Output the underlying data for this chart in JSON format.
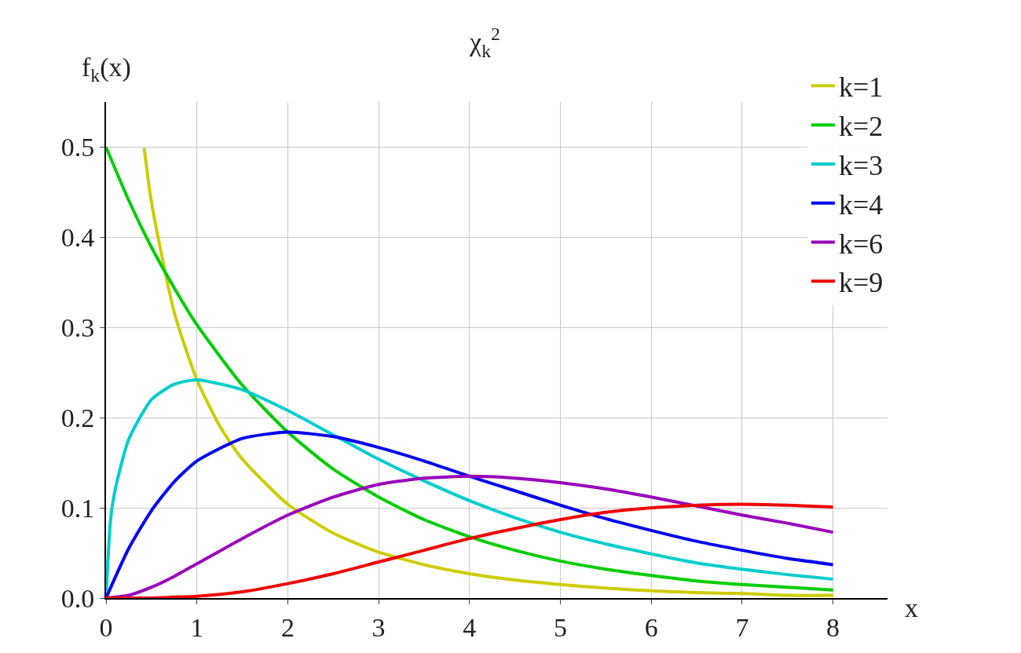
{
  "chart_data": {
    "type": "line",
    "title": "χ$_{k}$$^{2}$",
    "xlabel": "x",
    "ylabel": "f$_{k}$(x)",
    "xlim": [
      0,
      8.6
    ],
    "ylim": [
      0,
      0.55
    ],
    "xticks": [
      0,
      1,
      2,
      3,
      4,
      5,
      6,
      7,
      8
    ],
    "yticks": [
      {
        "value": 0,
        "label": "0.0"
      },
      {
        "value": 0.1,
        "label": "0.1"
      },
      {
        "value": 0.2,
        "label": "0.2"
      },
      {
        "value": 0.3,
        "label": "0.3"
      },
      {
        "value": 0.4,
        "label": "0.4"
      },
      {
        "value": 0.5,
        "label": "0.5"
      }
    ],
    "grid": true,
    "legend": "top right",
    "series": [
      {
        "name": "k=1",
        "color": "#cccc00",
        "x": [
          0.42,
          0.5,
          0.75,
          1,
          1.25,
          1.5,
          2,
          2.5,
          3,
          3.5,
          4,
          4.5,
          5,
          5.5,
          6,
          6.5,
          7,
          7.5,
          8
        ],
        "values": [
          0.499,
          0.439,
          0.317,
          0.242,
          0.191,
          0.154,
          0.104,
          0.072,
          0.051,
          0.037,
          0.027,
          0.02,
          0.015,
          0.011,
          0.008,
          0.006,
          0.005,
          0.003,
          0.003
        ]
      },
      {
        "name": "k=2",
        "color": "#00cc00",
        "x": [
          0,
          0.25,
          0.5,
          0.75,
          1,
          1.5,
          2,
          2.5,
          3,
          3.5,
          4,
          4.5,
          5,
          5.5,
          6,
          6.5,
          7,
          7.5,
          8
        ],
        "values": [
          0.5,
          0.441,
          0.389,
          0.344,
          0.303,
          0.236,
          0.184,
          0.143,
          0.112,
          0.087,
          0.068,
          0.053,
          0.041,
          0.032,
          0.025,
          0.019,
          0.015,
          0.012,
          0.009
        ]
      },
      {
        "name": "k=3",
        "color": "#00cccc",
        "x": [
          0,
          0.05,
          0.1,
          0.25,
          0.5,
          0.75,
          1,
          1.5,
          2,
          2.5,
          3,
          3.5,
          4,
          4.5,
          5,
          5.5,
          6,
          6.5,
          7,
          7.5,
          8
        ],
        "values": [
          0,
          0.087,
          0.12,
          0.176,
          0.22,
          0.237,
          0.242,
          0.231,
          0.208,
          0.181,
          0.154,
          0.13,
          0.108,
          0.089,
          0.073,
          0.06,
          0.049,
          0.039,
          0.032,
          0.026,
          0.021
        ]
      },
      {
        "name": "k=4",
        "color": "#0000ee",
        "x": [
          0,
          0.25,
          0.5,
          0.75,
          1,
          1.5,
          2,
          2.5,
          3,
          3.5,
          4,
          4.5,
          5,
          5.5,
          6,
          6.5,
          7,
          7.5,
          8
        ],
        "values": [
          0,
          0.055,
          0.097,
          0.129,
          0.152,
          0.177,
          0.184,
          0.179,
          0.167,
          0.152,
          0.135,
          0.119,
          0.103,
          0.088,
          0.075,
          0.063,
          0.053,
          0.044,
          0.037
        ]
      },
      {
        "name": "k=6",
        "color": "#9900bb",
        "x": [
          0,
          0.25,
          0.5,
          0.75,
          1,
          1.5,
          2,
          2.5,
          3,
          3.5,
          4,
          4.5,
          5,
          5.5,
          6,
          6.5,
          7,
          7.5,
          8
        ],
        "values": [
          0,
          0.003,
          0.012,
          0.024,
          0.038,
          0.066,
          0.092,
          0.112,
          0.126,
          0.133,
          0.135,
          0.133,
          0.128,
          0.121,
          0.112,
          0.102,
          0.092,
          0.083,
          0.073
        ]
      },
      {
        "name": "k=9",
        "color": "#ee0000",
        "x": [
          0,
          0.25,
          0.5,
          0.75,
          1,
          1.5,
          2,
          2.5,
          3,
          3.5,
          4,
          4.5,
          5,
          5.5,
          6,
          6.5,
          7,
          7.5,
          8
        ],
        "values": [
          0,
          0,
          0,
          0.001,
          0.002,
          0.007,
          0.016,
          0.027,
          0.04,
          0.053,
          0.066,
          0.077,
          0.087,
          0.095,
          0.1,
          0.103,
          0.104,
          0.103,
          0.101
        ]
      }
    ]
  }
}
